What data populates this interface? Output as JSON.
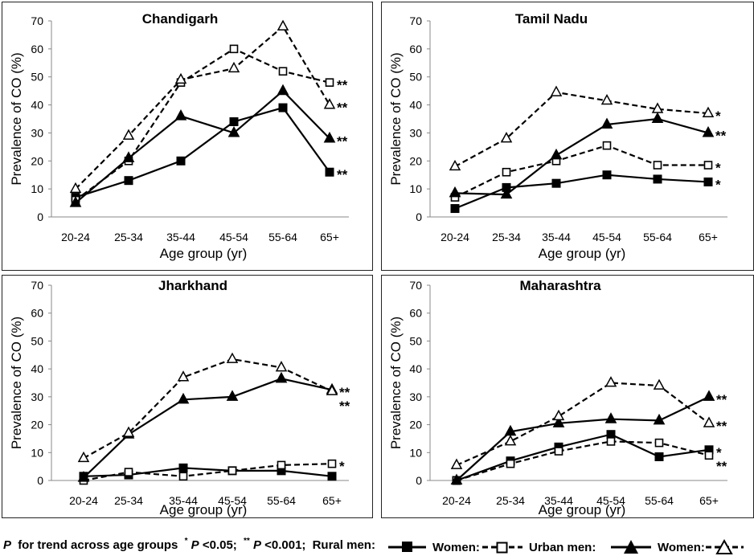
{
  "chart_data": [
    {
      "type": "line",
      "title": "Chandigarh",
      "xlabel": "Age group (yr)",
      "ylabel": "Prevalence of CO (%)",
      "ylim": [
        0,
        70
      ],
      "yticks": [
        "0",
        "10",
        "20",
        "30",
        "40",
        "50",
        "60",
        "70"
      ],
      "categories": [
        "20-24",
        "25-34",
        "35-44",
        "45-54",
        "55-64",
        "65+"
      ],
      "series": [
        {
          "key": "rural_men",
          "name": "Rural men",
          "values": [
            7,
            13,
            20,
            34,
            39,
            16
          ],
          "sig": "**"
        },
        {
          "key": "rural_women",
          "name": "Rural women",
          "values": [
            6,
            20,
            48,
            60,
            52,
            48
          ],
          "sig": "**"
        },
        {
          "key": "urban_men",
          "name": "Urban men",
          "values": [
            5,
            21,
            36,
            30,
            45,
            28
          ],
          "sig": "**"
        },
        {
          "key": "urban_women",
          "name": "Urban women",
          "values": [
            10,
            29,
            49,
            53,
            68,
            40
          ],
          "sig": "**"
        }
      ]
    },
    {
      "type": "line",
      "title": "Tamil Nadu",
      "xlabel": "Age group (yr)",
      "ylabel": "Prevalence of CO (%)",
      "ylim": [
        0,
        70
      ],
      "yticks": [
        "0",
        "10",
        "20",
        "30",
        "40",
        "50",
        "60",
        "70"
      ],
      "categories": [
        "20-24",
        "25-34",
        "35-44",
        "45-54",
        "55-64",
        "65+"
      ],
      "series": [
        {
          "key": "rural_men",
          "name": "Rural men",
          "values": [
            3,
            10.5,
            12,
            15,
            13.5,
            12.5
          ],
          "sig": "*"
        },
        {
          "key": "rural_women",
          "name": "Rural women",
          "values": [
            7,
            16,
            20,
            25.5,
            18.5,
            18.5
          ],
          "sig": "*"
        },
        {
          "key": "urban_men",
          "name": "Urban men",
          "values": [
            8.5,
            8,
            22,
            33,
            35,
            30
          ],
          "sig": "**"
        },
        {
          "key": "urban_women",
          "name": "Urban women",
          "values": [
            18,
            28,
            44.5,
            41.5,
            38.5,
            37
          ],
          "sig": "*"
        }
      ]
    },
    {
      "type": "line",
      "title": "Jharkhand",
      "xlabel": "Age group (yr)",
      "ylabel": "Prevalence of CO (%)",
      "ylim": [
        0,
        70
      ],
      "yticks": [
        "0",
        "10",
        "20",
        "30",
        "40",
        "50",
        "60",
        "70"
      ],
      "categories": [
        "20-24",
        "25-34",
        "35-44",
        "45-54",
        "55-64",
        "65+"
      ],
      "series": [
        {
          "key": "rural_men",
          "name": "Rural men",
          "values": [
            1.5,
            2,
            4.5,
            3.5,
            3.5,
            1.5
          ],
          "sig": ""
        },
        {
          "key": "rural_women",
          "name": "Rural women",
          "values": [
            0,
            3,
            1.5,
            3.5,
            5.5,
            6
          ],
          "sig": "*"
        },
        {
          "key": "urban_men",
          "name": "Urban men",
          "values": [
            1,
            16.5,
            29,
            30,
            36.5,
            32.5
          ],
          "sig": "**"
        },
        {
          "key": "urban_women",
          "name": "Urban women",
          "values": [
            8,
            17,
            37,
            43.5,
            40.5,
            32
          ],
          "sig": "**"
        }
      ]
    },
    {
      "type": "line",
      "title": "Maharashtra",
      "xlabel": "Age group (yr)",
      "ylabel": "Prevalence of CO (%)",
      "ylim": [
        0,
        70
      ],
      "yticks": [
        "0",
        "10",
        "20",
        "30",
        "40",
        "50",
        "60",
        "70"
      ],
      "categories": [
        "20-24",
        "25-34",
        "35-44",
        "45-54",
        "55-64",
        "65+"
      ],
      "series": [
        {
          "key": "rural_men",
          "name": "Rural men",
          "values": [
            0,
            7,
            12,
            16.5,
            8.5,
            11
          ],
          "sig": "*"
        },
        {
          "key": "rural_women",
          "name": "Rural women",
          "values": [
            0,
            6,
            10.5,
            14,
            13.5,
            9
          ],
          "sig": "**"
        },
        {
          "key": "urban_men",
          "name": "Urban men",
          "values": [
            0,
            17.5,
            20.5,
            22,
            21.5,
            30
          ],
          "sig": "**"
        },
        {
          "key": "urban_women",
          "name": "Urban women",
          "values": [
            5.5,
            14,
            23,
            35,
            34,
            20.5
          ],
          "sig": "**"
        }
      ]
    }
  ],
  "legend": {
    "rural_men_label": "Rural men:",
    "rural_women_label": "Women:",
    "urban_men_label": "Urban men:",
    "urban_women_label": "Women:"
  },
  "footnote": {
    "p_label": "P",
    "text1": "for trend across age groups",
    "sup1": "*",
    "p2": "P",
    "text2": "<0.05;",
    "sup2": "**",
    "p3": "P",
    "text3": "<0.001;"
  }
}
